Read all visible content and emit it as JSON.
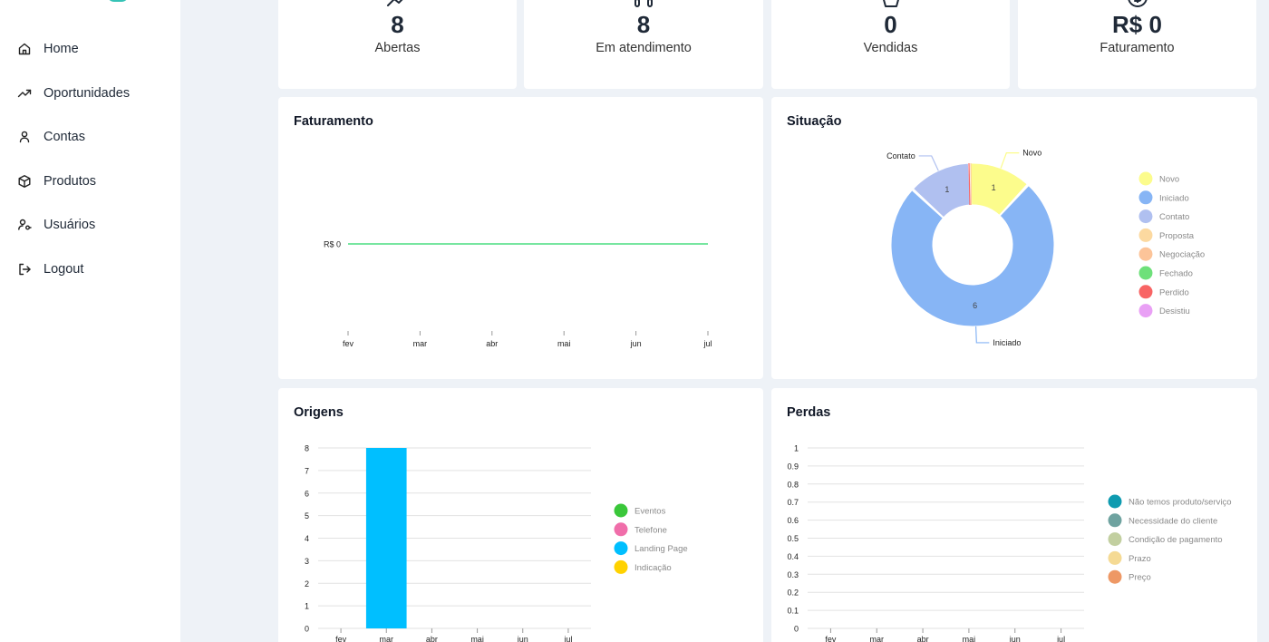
{
  "sidebar": {
    "items": [
      {
        "label": "Home",
        "icon": "home-icon"
      },
      {
        "label": "Oportunidades",
        "icon": "trending-up-icon"
      },
      {
        "label": "Contas",
        "icon": "user-icon"
      },
      {
        "label": "Produtos",
        "icon": "package-icon"
      },
      {
        "label": "Usuários",
        "icon": "user-key-icon"
      },
      {
        "label": "Logout",
        "icon": "logout-icon"
      }
    ]
  },
  "stats": [
    {
      "value": "8",
      "label": "Abertas",
      "icon": "trending-up-icon"
    },
    {
      "value": "8",
      "label": "Em atendimento",
      "icon": "headset-icon"
    },
    {
      "value": "0",
      "label": "Vendidas",
      "icon": "shopping-basket-icon"
    },
    {
      "value": "R$ 0",
      "label": "Faturamento",
      "icon": "dollar-circle-icon"
    }
  ],
  "panels": {
    "faturamento": "Faturamento",
    "situacao": "Situação",
    "origens": "Origens",
    "perdas": "Perdas"
  },
  "chart_data": [
    {
      "type": "line",
      "title": "Faturamento",
      "categories": [
        "fev",
        "mar",
        "abr",
        "mai",
        "jun",
        "jul"
      ],
      "series": [
        {
          "values": [
            0,
            0,
            0,
            0,
            0,
            0
          ],
          "color": "#4ade80"
        }
      ],
      "y_tick_labels": [
        "R$ 0"
      ],
      "grid": false
    },
    {
      "type": "pie",
      "title": "Situação",
      "donut": true,
      "slices": [
        {
          "label": "Novo",
          "value": 1,
          "color": "#fcfc8c"
        },
        {
          "label": "Iniciado",
          "value": 6,
          "color": "#87b5f5"
        },
        {
          "label": "Contato",
          "value": 1,
          "color": "#b0c0f0"
        },
        {
          "label": "Proposta",
          "value": 0,
          "color": "#fcd9a0"
        },
        {
          "label": "Negociação",
          "value": 0,
          "color": "#fcc499"
        },
        {
          "label": "Fechado",
          "value": 0,
          "color": "#6ee07a"
        },
        {
          "label": "Perdido",
          "value": 0,
          "color": "#f86464"
        },
        {
          "label": "Desistiu",
          "value": 0,
          "color": "#e9a0f5"
        }
      ],
      "slice_labels": [
        "Novo",
        "Contato",
        "Iniciado"
      ],
      "legend": "right"
    },
    {
      "type": "bar",
      "title": "Origens",
      "categories": [
        "fev",
        "mar",
        "abr",
        "mai",
        "jun",
        "jul"
      ],
      "series": [
        {
          "name": "Eventos",
          "values": [
            0,
            0,
            0,
            0,
            0,
            0
          ],
          "color": "#3ac73a"
        },
        {
          "name": "Telefone",
          "values": [
            0,
            0,
            0,
            0,
            0,
            0
          ],
          "color": "#f06eaa"
        },
        {
          "name": "Landing Page",
          "values": [
            0,
            8,
            0,
            0,
            0,
            0
          ],
          "color": "#00bfff"
        },
        {
          "name": "Indicação",
          "values": [
            0,
            0,
            0,
            0,
            0,
            0
          ],
          "color": "#ffd200"
        }
      ],
      "ylim": [
        0,
        8
      ],
      "y_ticks": [
        0,
        1,
        2,
        3,
        4,
        5,
        6,
        7,
        8
      ],
      "grid": true,
      "legend": "right"
    },
    {
      "type": "bar",
      "title": "Perdas",
      "categories": [
        "fev",
        "mar",
        "abr",
        "mai",
        "jun",
        "jul"
      ],
      "series": [
        {
          "name": "Não temos produto/serviço",
          "values": [
            0,
            0,
            0,
            0,
            0,
            0
          ],
          "color": "#0e9bb0"
        },
        {
          "name": "Necessidade do cliente",
          "values": [
            0,
            0,
            0,
            0,
            0,
            0
          ],
          "color": "#6fa3a0"
        },
        {
          "name": "Condição de pagamento",
          "values": [
            0,
            0,
            0,
            0,
            0,
            0
          ],
          "color": "#c2cfa0"
        },
        {
          "name": "Prazo",
          "values": [
            0,
            0,
            0,
            0,
            0,
            0
          ],
          "color": "#f5da94"
        },
        {
          "name": "Preço",
          "values": [
            0,
            0,
            0,
            0,
            0,
            0
          ],
          "color": "#ee9865"
        }
      ],
      "ylim": [
        0,
        1
      ],
      "y_ticks": [
        "0",
        "0.1",
        "0.2",
        "0.3",
        "0.4",
        "0.5",
        "0.6",
        "0.7",
        "0.8",
        "0.9",
        "1"
      ],
      "grid": true,
      "legend": "right"
    }
  ]
}
